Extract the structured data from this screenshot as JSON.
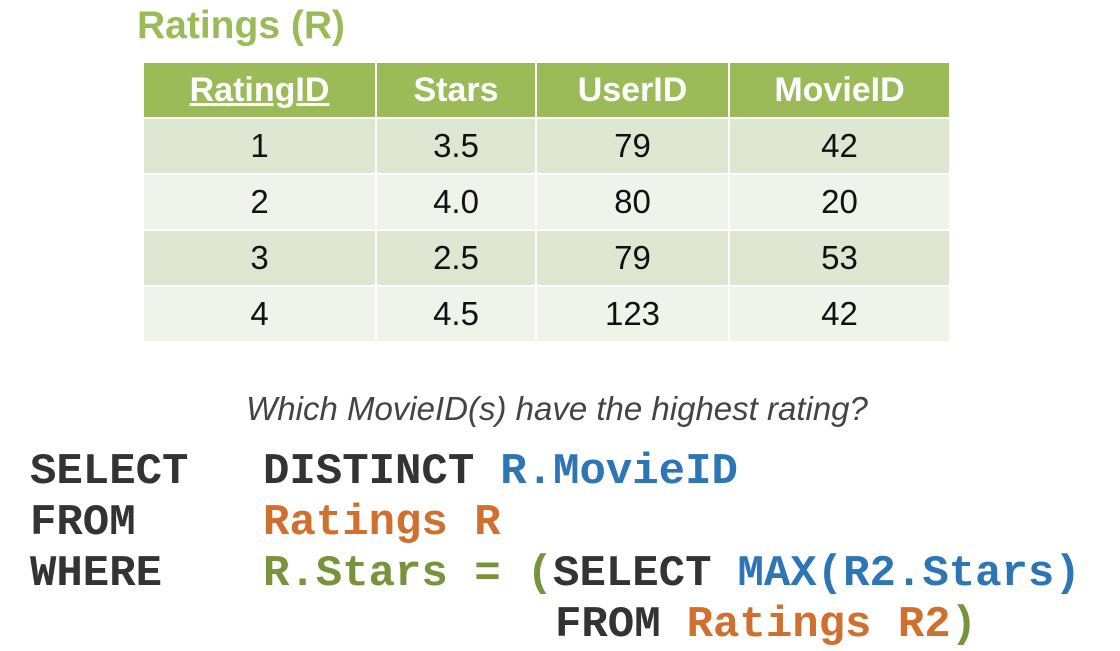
{
  "title": "Ratings (R)",
  "table": {
    "header": [
      "RatingID",
      "Stars",
      "UserID",
      "MovieID"
    ],
    "rows": [
      [
        "1",
        "3.5",
        "79",
        "42"
      ],
      [
        "2",
        "4.0",
        "80",
        "20"
      ],
      [
        "3",
        "2.5",
        "79",
        "53"
      ],
      [
        "4",
        "4.5",
        "123",
        "42"
      ]
    ]
  },
  "question": "Which MovieID(s) have the highest rating?",
  "code": {
    "lines": [
      {
        "parts": [
          {
            "text": "SELECT",
            "color": "#333333"
          },
          {
            "text": "DISTINCT",
            "color": "#333333"
          },
          {
            "text": "R.MovieID",
            "color": "#2e75b6"
          }
        ]
      },
      {
        "parts": [
          {
            "text": "FROM",
            "color": "#333333"
          },
          {
            "text": "Ratings R",
            "color": "#d0702f"
          }
        ]
      },
      {
        "parts": [
          {
            "text": "WHERE",
            "color": "#333333"
          },
          {
            "text": "R.Stars =",
            "color": "#77933c"
          },
          {
            "text": "(",
            "color": "#77933c"
          },
          {
            "text": "SELECT",
            "color": "#333333"
          },
          {
            "text": "MAX(R2.Stars)",
            "color": "#2e75b6"
          }
        ]
      },
      {
        "parts": [
          {
            "text": "FROM",
            "color": "#333333"
          },
          {
            "text": "Ratings R2",
            "color": "#d0702f"
          },
          {
            "text": ")",
            "color": "#77933c"
          }
        ]
      }
    ]
  }
}
